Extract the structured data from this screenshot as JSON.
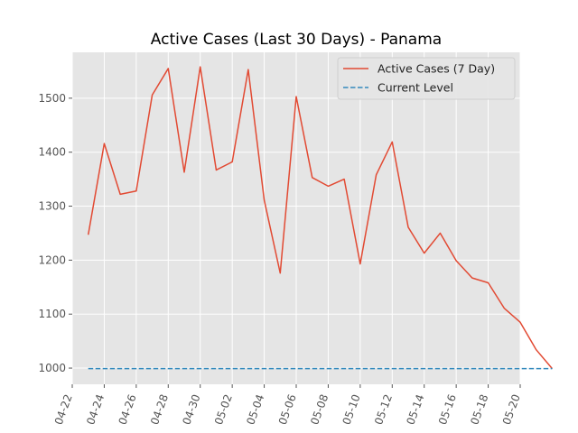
{
  "chart_data": {
    "type": "line",
    "title": "Active Cases (Last 30 Days) - Panama",
    "xlabel": "",
    "ylabel": "",
    "x_ticks": [
      "04-22",
      "04-24",
      "04-26",
      "04-28",
      "04-30",
      "05-02",
      "05-04",
      "05-06",
      "05-08",
      "05-10",
      "05-12",
      "05-14",
      "05-16",
      "05-18",
      "05-20"
    ],
    "y_ticks": [
      1000,
      1100,
      1200,
      1300,
      1400,
      1500
    ],
    "xlim": [
      "2020-04-22",
      "2020-05-20"
    ],
    "ylim": [
      970,
      1585
    ],
    "grid": true,
    "legend_position": "top-right",
    "series": [
      {
        "name": "Active Cases (7 Day)",
        "color": "#E24A33",
        "style": "solid",
        "x": [
          "2020-04-23",
          "2020-04-24",
          "2020-04-25",
          "2020-04-26",
          "2020-04-27",
          "2020-04-28",
          "2020-04-29",
          "2020-04-30",
          "2020-05-01",
          "2020-05-02",
          "2020-05-03",
          "2020-05-04",
          "2020-05-05",
          "2020-05-06",
          "2020-05-07",
          "2020-05-08",
          "2020-05-09",
          "2020-05-10",
          "2020-05-11",
          "2020-05-12",
          "2020-05-13",
          "2020-05-14",
          "2020-05-15",
          "2020-05-16",
          "2020-05-17",
          "2020-05-18",
          "2020-05-19",
          "2020-05-20",
          "2020-05-21",
          "2020-05-22"
        ],
        "values": [
          1247,
          1416,
          1322,
          1328,
          1506,
          1555,
          1363,
          1558,
          1367,
          1382,
          1553,
          1311,
          1176,
          1503,
          1353,
          1337,
          1350,
          1193,
          1358,
          1419,
          1261,
          1213,
          1250,
          1199,
          1167,
          1158,
          1111,
          1085,
          1034,
          999
        ]
      },
      {
        "name": "Current Level",
        "color": "#348ABD",
        "style": "dashed",
        "x": [
          "2020-04-23",
          "2020-05-22"
        ],
        "values": [
          999,
          999
        ]
      }
    ]
  }
}
